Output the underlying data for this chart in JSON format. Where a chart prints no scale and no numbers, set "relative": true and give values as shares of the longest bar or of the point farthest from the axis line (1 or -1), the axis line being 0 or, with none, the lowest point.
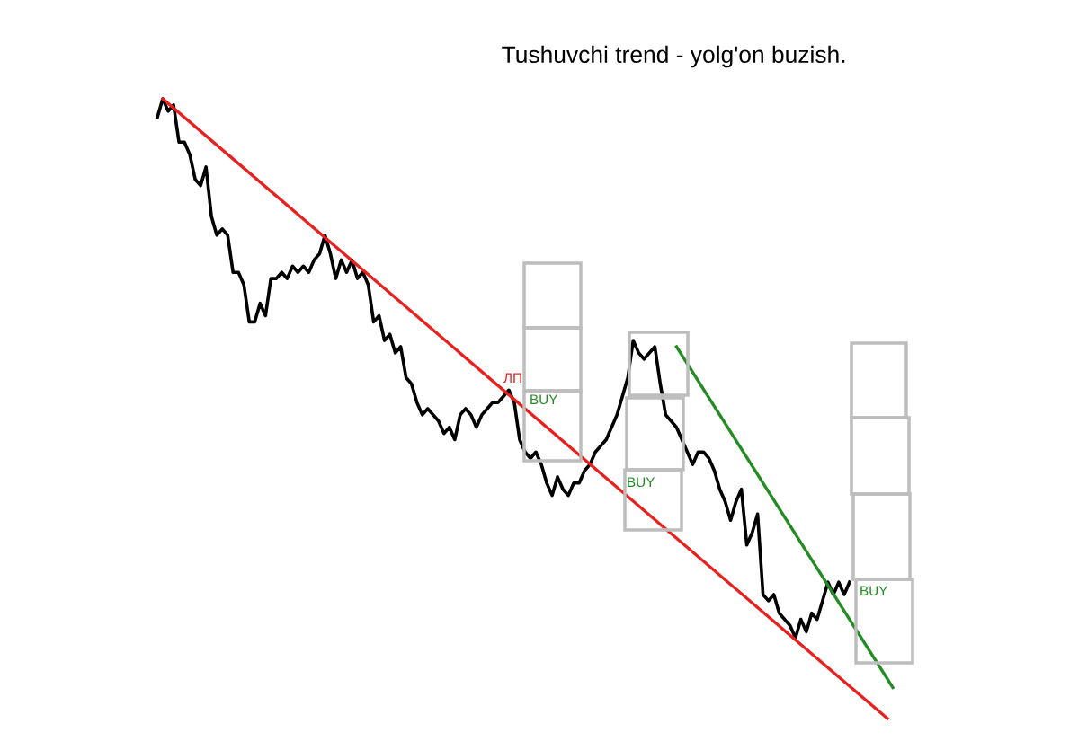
{
  "chart_data": {
    "type": "line",
    "title": "Tushuvchi trend - yolg'on buzish.",
    "relative": true,
    "grid": false,
    "legend": false,
    "tick_labels": false,
    "categories": [
      null,
      null,
      null,
      null,
      null,
      null,
      null,
      null,
      null,
      null,
      null,
      null,
      null,
      null,
      null,
      null,
      null,
      null,
      null,
      null,
      null,
      null,
      null,
      null,
      null,
      null,
      null,
      null,
      null,
      null,
      null,
      null,
      null,
      null,
      null,
      null,
      null,
      null,
      null,
      null,
      null,
      null,
      null,
      null,
      null,
      null,
      null,
      null,
      null,
      null,
      null,
      null,
      null,
      null,
      null,
      null,
      null,
      null,
      null,
      null,
      null,
      null,
      null,
      null,
      null,
      null,
      null,
      null,
      null,
      null,
      null,
      null,
      null,
      null,
      null,
      null,
      null,
      null,
      null,
      null,
      null,
      null,
      null,
      null,
      null,
      null,
      null,
      null,
      null,
      null,
      null,
      null,
      null,
      null,
      null,
      null,
      null,
      null,
      null,
      null,
      null,
      null,
      null,
      null,
      null,
      null,
      null,
      null,
      null,
      null,
      null,
      null,
      null,
      null,
      null,
      null,
      null,
      null,
      null,
      null,
      null,
      null,
      null,
      null,
      null,
      null,
      null,
      null,
      null,
      null,
      null,
      null,
      null,
      null,
      null,
      null,
      null
    ],
    "series": [
      {
        "color": "#000000",
        "values": [
          0.97,
          1.0,
          0.98,
          0.99,
          0.93,
          0.93,
          0.91,
          0.87,
          0.86,
          0.89,
          0.81,
          0.78,
          0.79,
          0.78,
          0.72,
          0.72,
          0.7,
          0.64,
          0.64,
          0.67,
          0.65,
          0.71,
          0.71,
          0.72,
          0.71,
          0.73,
          0.72,
          0.73,
          0.72,
          0.74,
          0.75,
          0.78,
          0.75,
          0.71,
          0.74,
          0.72,
          0.74,
          0.71,
          0.72,
          0.7,
          0.64,
          0.65,
          0.61,
          0.62,
          0.59,
          0.6,
          0.55,
          0.54,
          0.51,
          0.49,
          0.5,
          0.49,
          0.48,
          0.46,
          0.47,
          0.45,
          0.49,
          0.5,
          0.49,
          0.47,
          0.49,
          0.5,
          0.51,
          0.51,
          0.52,
          0.53,
          0.51,
          0.45,
          0.43,
          0.42,
          0.43,
          0.41,
          0.38,
          0.36,
          0.39,
          0.37,
          0.36,
          0.38,
          0.38,
          0.4,
          0.41,
          0.43,
          0.44,
          0.45,
          0.47,
          0.49,
          0.52,
          0.55,
          0.61,
          0.59,
          0.58,
          0.59,
          0.6,
          0.54,
          0.49,
          0.48,
          0.47,
          0.45,
          0.43,
          0.41,
          0.43,
          0.43,
          0.42,
          0.4,
          0.37,
          0.35,
          0.32,
          0.35,
          0.37,
          0.28,
          0.3,
          0.33,
          0.2,
          0.19,
          0.2,
          0.17,
          0.16,
          0.15,
          0.13,
          0.16,
          0.14,
          0.17,
          0.16,
          0.19,
          0.22,
          0.2,
          0.22,
          0.2,
          0.22,
          null,
          null,
          null,
          null,
          null,
          null,
          null,
          null
        ]
      },
      {
        "color": "#e8201e",
        "values": [
          null,
          1.0,
          null,
          null,
          null,
          null,
          null,
          null,
          null,
          null,
          null,
          null,
          null,
          null,
          null,
          null,
          null,
          null,
          null,
          null,
          null,
          null,
          null,
          null,
          null,
          null,
          null,
          null,
          null,
          null,
          null,
          null,
          null,
          null,
          null,
          null,
          null,
          null,
          null,
          null,
          null,
          null,
          null,
          null,
          null,
          null,
          null,
          null,
          null,
          null,
          null,
          null,
          null,
          null,
          null,
          null,
          null,
          null,
          null,
          null,
          null,
          null,
          null,
          null,
          null,
          null,
          null,
          null,
          null,
          null,
          null,
          null,
          null,
          null,
          null,
          null,
          null,
          null,
          null,
          null,
          null,
          null,
          null,
          null,
          null,
          null,
          null,
          null,
          null,
          null,
          null,
          null,
          null,
          null,
          null,
          null,
          null,
          null,
          null,
          null,
          null,
          null,
          null,
          null,
          null,
          null,
          null,
          null,
          null,
          null,
          null,
          null,
          null,
          null,
          null,
          null,
          null,
          null,
          null,
          null,
          null,
          null,
          null,
          null,
          null,
          null,
          null,
          null,
          null,
          null,
          null,
          null,
          null,
          null,
          null,
          0.0,
          null
        ]
      },
      {
        "color": "#228b22",
        "values": [
          null,
          null,
          null,
          null,
          null,
          null,
          null,
          null,
          null,
          null,
          null,
          null,
          null,
          null,
          null,
          null,
          null,
          null,
          null,
          null,
          null,
          null,
          null,
          null,
          null,
          null,
          null,
          null,
          null,
          null,
          null,
          null,
          null,
          null,
          null,
          null,
          null,
          null,
          null,
          null,
          null,
          null,
          null,
          null,
          null,
          null,
          null,
          null,
          null,
          null,
          null,
          null,
          null,
          null,
          null,
          null,
          null,
          null,
          null,
          null,
          null,
          null,
          null,
          null,
          null,
          null,
          null,
          null,
          null,
          null,
          null,
          null,
          null,
          null,
          null,
          null,
          null,
          null,
          null,
          null,
          null,
          null,
          null,
          null,
          null,
          null,
          null,
          null,
          null,
          null,
          null,
          null,
          null,
          null,
          null,
          null,
          0.6,
          null,
          null,
          null,
          null,
          null,
          null,
          null,
          null,
          null,
          null,
          null,
          null,
          null,
          null,
          null,
          null,
          null,
          null,
          null,
          null,
          null,
          null,
          null,
          null,
          null,
          null,
          null,
          null,
          null,
          null,
          null,
          null,
          null,
          null,
          null,
          null,
          null,
          null,
          null,
          0.05
        ]
      }
    ],
    "annotations": [
      "ЛП",
      "BUY",
      "BUY",
      "BUY"
    ]
  }
}
